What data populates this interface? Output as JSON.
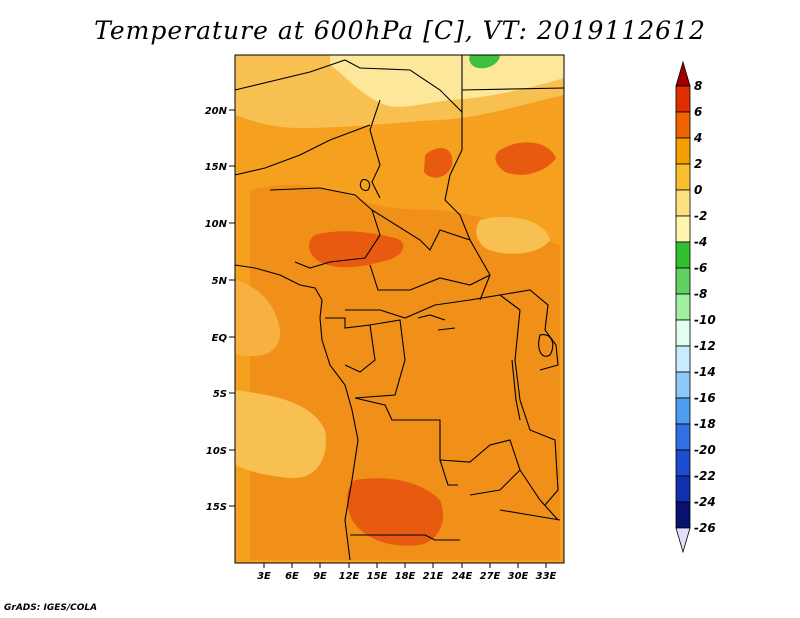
{
  "title": "Temperature at 600hPa [C], VT: 2019112612",
  "footer": "GrADS: IGES/COLA",
  "map": {
    "lat_labels": [
      "20N",
      "15N",
      "10N",
      "5N",
      "EQ",
      "5S",
      "10S",
      "15S"
    ],
    "lon_labels": [
      "3E",
      "6E",
      "9E",
      "12E",
      "15E",
      "18E",
      "21E",
      "24E",
      "27E",
      "30E",
      "33E"
    ]
  },
  "colorbar": {
    "labels": [
      "8",
      "6",
      "4",
      "2",
      "0",
      "-2",
      "-4",
      "-6",
      "-8",
      "-10",
      "-12",
      "-14",
      "-16",
      "-18",
      "-20",
      "-22",
      "-24",
      "-26"
    ],
    "colors": [
      "#a00000",
      "#e02e00",
      "#f06400",
      "#f5a000",
      "#f8c030",
      "#fde080",
      "#fff5b0",
      "#30c030",
      "#60d060",
      "#a0f0a0",
      "#e0fff0",
      "#c8ecff",
      "#8ec8f8",
      "#4c9cf0",
      "#3070e0",
      "#1c4cd0",
      "#1030b0",
      "#08126e",
      "#e0e0f8"
    ]
  },
  "fields": {
    "warm_core": "#f08010",
    "hot_spots": "#e85a10",
    "mild": "#f8c050",
    "cool": "#fde79a"
  }
}
